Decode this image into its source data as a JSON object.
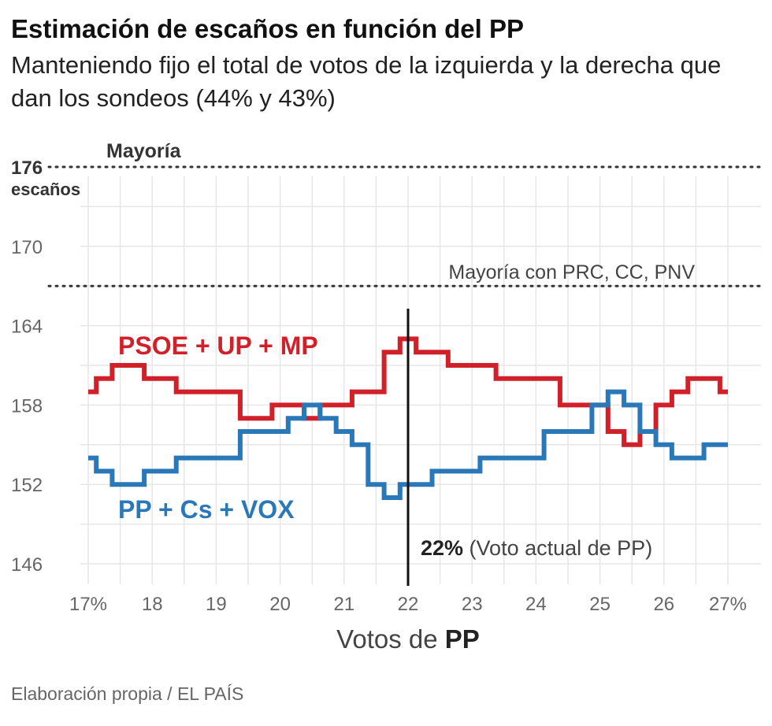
{
  "header": {
    "title": "Estimación de escaños en función del PP",
    "subtitle": "Manteniendo fijo el total de votos de la izquierda y la derecha que dan los sondeos (44% y 43%)"
  },
  "source": "Elaboración propia / EL PAÍS",
  "colors": {
    "left_bloc": "#d0202a",
    "right_bloc": "#2a78b8",
    "grid": "#e6e6e6"
  },
  "chart_data": {
    "type": "line",
    "step": true,
    "title": "Estimación de escaños en función del PP",
    "xlabel_prefix": "Votos de ",
    "xlabel_bold": "PP",
    "ylabel": "",
    "xlim": [
      17,
      27
    ],
    "ylim": [
      146,
      176
    ],
    "grid": true,
    "xticks": [
      {
        "value": 17,
        "label": "17%"
      },
      {
        "value": 18,
        "label": "18"
      },
      {
        "value": 19,
        "label": "19"
      },
      {
        "value": 20,
        "label": "20"
      },
      {
        "value": 21,
        "label": "21"
      },
      {
        "value": 22,
        "label": "22"
      },
      {
        "value": 23,
        "label": "23"
      },
      {
        "value": 24,
        "label": "24"
      },
      {
        "value": 25,
        "label": "25"
      },
      {
        "value": 26,
        "label": "26"
      },
      {
        "value": 27,
        "label": "27%"
      }
    ],
    "yticks": [
      {
        "value": 146,
        "label": "146"
      },
      {
        "value": 152,
        "label": "152"
      },
      {
        "value": 158,
        "label": "158"
      },
      {
        "value": 164,
        "label": "164"
      },
      {
        "value": 170,
        "label": "170"
      }
    ],
    "reference_lines": [
      {
        "value": 176,
        "value_label": "176",
        "unit_label": "escaños",
        "label": "Mayoría"
      },
      {
        "value": 167,
        "label": "Mayoría con PRC, CC, PNV"
      }
    ],
    "marker": {
      "x": 22,
      "label_bold": "22%",
      "label_rest": " (Voto actual de PP)"
    },
    "series": [
      {
        "name": "PSOE + UP + MP",
        "color": "#d0202a",
        "x": [
          17.0,
          17.25,
          17.5,
          17.75,
          18.0,
          18.25,
          18.5,
          18.75,
          19.0,
          19.25,
          19.5,
          19.75,
          20.0,
          20.25,
          20.5,
          20.75,
          21.0,
          21.25,
          21.5,
          21.75,
          22.0,
          22.25,
          22.5,
          22.75,
          23.0,
          23.25,
          23.5,
          23.75,
          24.0,
          24.25,
          24.5,
          24.75,
          25.0,
          25.25,
          25.5,
          25.75,
          26.0,
          26.25,
          26.5,
          26.75,
          27.0
        ],
        "y": [
          159,
          160,
          161,
          161,
          160,
          160,
          159,
          159,
          159,
          159,
          157,
          157,
          158,
          158,
          157,
          158,
          158,
          159,
          159,
          162,
          163,
          162,
          162,
          161,
          161,
          161,
          160,
          160,
          160,
          160,
          158,
          158,
          158,
          156,
          155,
          156,
          158,
          159,
          160,
          160,
          159
        ]
      },
      {
        "name": "PP + Cs + VOX",
        "color": "#2a78b8",
        "x": [
          17.0,
          17.25,
          17.5,
          17.75,
          18.0,
          18.25,
          18.5,
          18.75,
          19.0,
          19.25,
          19.5,
          19.75,
          20.0,
          20.25,
          20.5,
          20.75,
          21.0,
          21.25,
          21.5,
          21.75,
          22.0,
          22.25,
          22.5,
          22.75,
          23.0,
          23.25,
          23.5,
          23.75,
          24.0,
          24.25,
          24.5,
          24.75,
          25.0,
          25.25,
          25.5,
          25.75,
          26.0,
          26.25,
          26.5,
          26.75,
          27.0
        ],
        "y": [
          154,
          153,
          152,
          152,
          153,
          153,
          154,
          154,
          154,
          154,
          156,
          156,
          156,
          157,
          158,
          157,
          156,
          155,
          152,
          151,
          152,
          152,
          153,
          153,
          153,
          154,
          154,
          154,
          154,
          156,
          156,
          156,
          158,
          159,
          158,
          156,
          155,
          154,
          154,
          155,
          155
        ]
      }
    ]
  }
}
